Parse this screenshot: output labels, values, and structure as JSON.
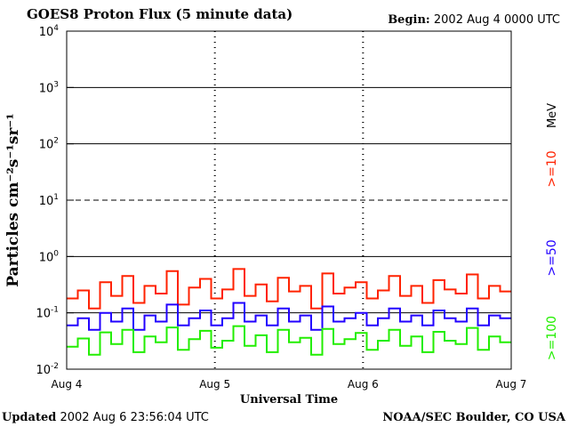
{
  "header": {
    "title": "GOES8 Proton Flux (5 minute data)",
    "begin_label": "Begin:",
    "begin_value": "2002 Aug 4 0000 UTC"
  },
  "footer": {
    "updated_label": "Updated",
    "updated_value": "2002 Aug  6 23:56:04 UTC",
    "credit": "NOAA/SEC Boulder, CO USA"
  },
  "chart_data": {
    "type": "line",
    "ylabel": "Particles cm⁻²s⁻¹sr⁻¹",
    "xlabel": "Universal Time",
    "yscale": "log",
    "ylim": [
      0.01,
      10000
    ],
    "yticks": [
      {
        "base": "10",
        "exp": "4"
      },
      {
        "base": "10",
        "exp": "3"
      },
      {
        "base": "10",
        "exp": "2"
      },
      {
        "base": "10",
        "exp": "1"
      },
      {
        "base": "10",
        "exp": "0"
      },
      {
        "base": "10",
        "exp": "-1"
      },
      {
        "base": "10",
        "exp": "-2"
      }
    ],
    "xlim": [
      "2002-08-04",
      "2002-08-07"
    ],
    "xticks": [
      "Aug 4",
      "Aug 5",
      "Aug 6",
      "Aug 7"
    ],
    "grid": true,
    "energy_unit": "MeV",
    "series": [
      {
        "name": ">=10",
        "color": "#ff2200",
        "values": [
          0.18,
          0.25,
          0.12,
          0.35,
          0.2,
          0.45,
          0.15,
          0.3,
          0.22,
          0.55,
          0.14,
          0.28,
          0.4,
          0.18,
          0.26,
          0.6,
          0.2,
          0.32,
          0.16,
          0.42,
          0.24,
          0.3,
          0.12,
          0.5,
          0.22,
          0.28,
          0.35,
          0.18,
          0.25,
          0.45,
          0.2,
          0.3,
          0.15,
          0.38,
          0.26,
          0.22,
          0.48,
          0.18,
          0.3,
          0.24
        ]
      },
      {
        "name": ">=50",
        "color": "#2200ff",
        "values": [
          0.06,
          0.08,
          0.05,
          0.1,
          0.07,
          0.12,
          0.05,
          0.09,
          0.07,
          0.14,
          0.06,
          0.08,
          0.11,
          0.06,
          0.08,
          0.15,
          0.07,
          0.09,
          0.06,
          0.12,
          0.07,
          0.09,
          0.05,
          0.13,
          0.07,
          0.08,
          0.1,
          0.06,
          0.08,
          0.12,
          0.07,
          0.09,
          0.06,
          0.11,
          0.08,
          0.07,
          0.12,
          0.06,
          0.09,
          0.08
        ]
      },
      {
        "name": ">=100",
        "color": "#22ee00",
        "values": [
          0.025,
          0.035,
          0.018,
          0.045,
          0.028,
          0.05,
          0.02,
          0.038,
          0.03,
          0.055,
          0.022,
          0.034,
          0.048,
          0.024,
          0.032,
          0.058,
          0.026,
          0.04,
          0.02,
          0.05,
          0.03,
          0.036,
          0.018,
          0.052,
          0.028,
          0.034,
          0.044,
          0.022,
          0.032,
          0.05,
          0.026,
          0.038,
          0.02,
          0.046,
          0.032,
          0.028,
          0.054,
          0.022,
          0.038,
          0.03
        ]
      }
    ]
  }
}
